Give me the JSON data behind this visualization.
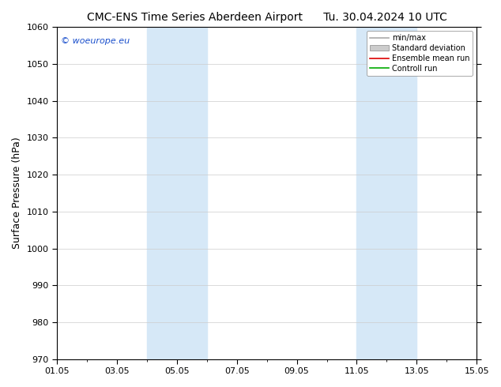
{
  "title_left": "CMC-ENS Time Series Aberdeen Airport",
  "title_right": "Tu. 30.04.2024 10 UTC",
  "ylabel": "Surface Pressure (hPa)",
  "ylim": [
    970,
    1060
  ],
  "yticks": [
    970,
    980,
    990,
    1000,
    1010,
    1020,
    1030,
    1040,
    1050,
    1060
  ],
  "xtick_labels": [
    "01.05",
    "03.05",
    "05.05",
    "07.05",
    "09.05",
    "11.05",
    "13.05",
    "15.05"
  ],
  "xtick_positions": [
    0,
    2,
    4,
    6,
    8,
    10,
    12,
    14
  ],
  "shaded_regions": [
    {
      "x_start": 3,
      "x_end": 5,
      "color": "#d6e8f7"
    },
    {
      "x_start": 10,
      "x_end": 12,
      "color": "#d6e8f7"
    }
  ],
  "watermark_text": "© woeurope.eu",
  "watermark_color": "#1a4fcc",
  "legend_items": [
    {
      "label": "min/max",
      "color": "#aaaaaa",
      "type": "line",
      "linewidth": 1.2
    },
    {
      "label": "Standard deviation",
      "color": "#cccccc",
      "type": "patch"
    },
    {
      "label": "Ensemble mean run",
      "color": "#dd0000",
      "type": "line",
      "linewidth": 1.2
    },
    {
      "label": "Controll run",
      "color": "#00aa00",
      "type": "line",
      "linewidth": 1.2
    }
  ],
  "background_color": "#ffffff",
  "grid_color": "#cccccc",
  "title_fontsize": 10,
  "ylabel_fontsize": 9,
  "tick_fontsize": 8,
  "legend_fontsize": 7,
  "watermark_fontsize": 8
}
